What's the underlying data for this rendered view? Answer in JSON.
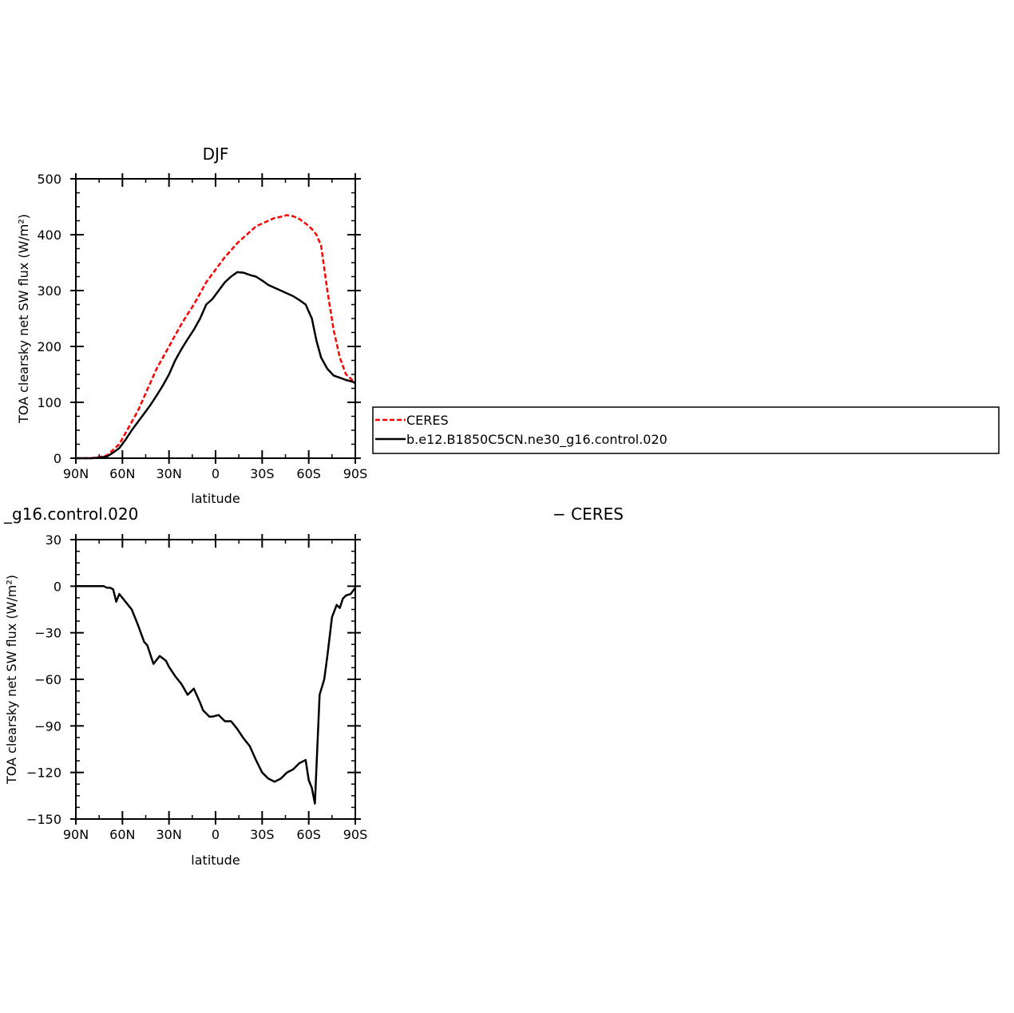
{
  "colors": {
    "ceres": "#ff0000",
    "model": "#000000"
  },
  "chart_data": [
    {
      "type": "line",
      "title": "DJF",
      "xlabel": "latitude",
      "ylabel": "TOA clearsky net SW flux (W/m²)",
      "xlim": [
        90,
        -90
      ],
      "ylim": [
        0,
        500
      ],
      "xticks": [
        90,
        60,
        30,
        0,
        -30,
        -60,
        -90
      ],
      "xtick_labels": [
        "90N",
        "60N",
        "30N",
        "0",
        "30S",
        "60S",
        "90S"
      ],
      "yticks": [
        0,
        100,
        200,
        300,
        400,
        500
      ],
      "ytick_labels": [
        "0",
        "100",
        "200",
        "300",
        "400",
        "500"
      ],
      "legend": {
        "placement": "right",
        "entries": [
          "CERES",
          "b.e12.B1850C5CN.ne30_g16.control.020"
        ]
      },
      "series": [
        {
          "name": "CERES",
          "style": "dashed",
          "color": "#ff0000",
          "x": [
            90,
            85,
            80,
            75,
            70,
            66,
            62,
            58,
            54,
            50,
            46,
            42,
            38,
            34,
            30,
            26,
            22,
            18,
            14,
            10,
            6,
            2,
            -2,
            -6,
            -10,
            -14,
            -18,
            -22,
            -26,
            -30,
            -34,
            -38,
            -42,
            -46,
            -50,
            -54,
            -58,
            -62,
            -65,
            -68,
            -72,
            -76,
            -80,
            -84,
            -88,
            -90
          ],
          "y": [
            0,
            0,
            0,
            2,
            5,
            15,
            25,
            45,
            65,
            85,
            110,
            135,
            160,
            180,
            200,
            220,
            240,
            258,
            275,
            295,
            315,
            330,
            345,
            360,
            372,
            385,
            395,
            405,
            415,
            420,
            425,
            430,
            432,
            435,
            433,
            428,
            420,
            410,
            400,
            380,
            300,
            230,
            180,
            150,
            140,
            133
          ]
        },
        {
          "name": "b.e12.B1850C5CN.ne30_g16.control.020",
          "style": "solid",
          "color": "#000000",
          "x": [
            90,
            85,
            80,
            75,
            70,
            66,
            62,
            58,
            54,
            50,
            46,
            42,
            38,
            34,
            30,
            26,
            22,
            18,
            14,
            10,
            6,
            2,
            -2,
            -6,
            -10,
            -14,
            -18,
            -22,
            -26,
            -30,
            -34,
            -38,
            -42,
            -46,
            -50,
            -54,
            -58,
            -62,
            -65,
            -68,
            -72,
            -76,
            -80,
            -84,
            -88,
            -90
          ],
          "y": [
            0,
            0,
            0,
            1,
            3,
            10,
            18,
            33,
            50,
            65,
            80,
            95,
            112,
            130,
            150,
            175,
            195,
            213,
            230,
            250,
            275,
            285,
            300,
            315,
            325,
            333,
            332,
            328,
            325,
            318,
            310,
            305,
            300,
            295,
            290,
            283,
            275,
            250,
            210,
            180,
            160,
            148,
            144,
            140,
            137,
            135
          ]
        }
      ]
    },
    {
      "type": "line",
      "title": "_g16.control.020",
      "title_right": "− CERES",
      "xlabel": "latitude",
      "ylabel": "TOA clearsky net SW flux (W/m²)",
      "xlim": [
        90,
        -90
      ],
      "ylim": [
        -150,
        30
      ],
      "xticks": [
        90,
        60,
        30,
        0,
        -30,
        -60,
        -90
      ],
      "xtick_labels": [
        "90N",
        "60N",
        "30N",
        "0",
        "30S",
        "60S",
        "90S"
      ],
      "yticks": [
        30,
        0,
        -30,
        -60,
        -90,
        -120,
        -150
      ],
      "ytick_labels": [
        "30",
        "0",
        "−30",
        "−60",
        "−90",
        "−120",
        "−150"
      ],
      "series": [
        {
          "style": "solid",
          "color": "#000000",
          "x": [
            90,
            85,
            80,
            75,
            72,
            70,
            68,
            66,
            64,
            62,
            58,
            54,
            50,
            46,
            44,
            40,
            36,
            32,
            30,
            26,
            22,
            18,
            14,
            10,
            8,
            6,
            4,
            2,
            -2,
            -6,
            -10,
            -14,
            -18,
            -22,
            -26,
            -30,
            -34,
            -38,
            -42,
            -46,
            -50,
            -54,
            -58,
            -60,
            -62,
            -64,
            -67,
            -70,
            -72,
            -75,
            -78,
            -80,
            -82,
            -84,
            -87,
            -90
          ],
          "y": [
            0,
            0,
            0,
            0,
            0,
            -1,
            -1,
            -2,
            -10,
            -5,
            -10,
            -15,
            -25,
            -36,
            -38,
            -50,
            -45,
            -48,
            -52,
            -58,
            -63,
            -70,
            -66,
            -75,
            -80,
            -82,
            -84,
            -84,
            -83,
            -87,
            -87,
            -92,
            -98,
            -103,
            -112,
            -120,
            -124,
            -126,
            -124,
            -120,
            -118,
            -114,
            -112,
            -125,
            -130,
            -140,
            -70,
            -60,
            -45,
            -20,
            -12,
            -14,
            -8,
            -6,
            -5,
            -1
          ]
        }
      ]
    }
  ]
}
